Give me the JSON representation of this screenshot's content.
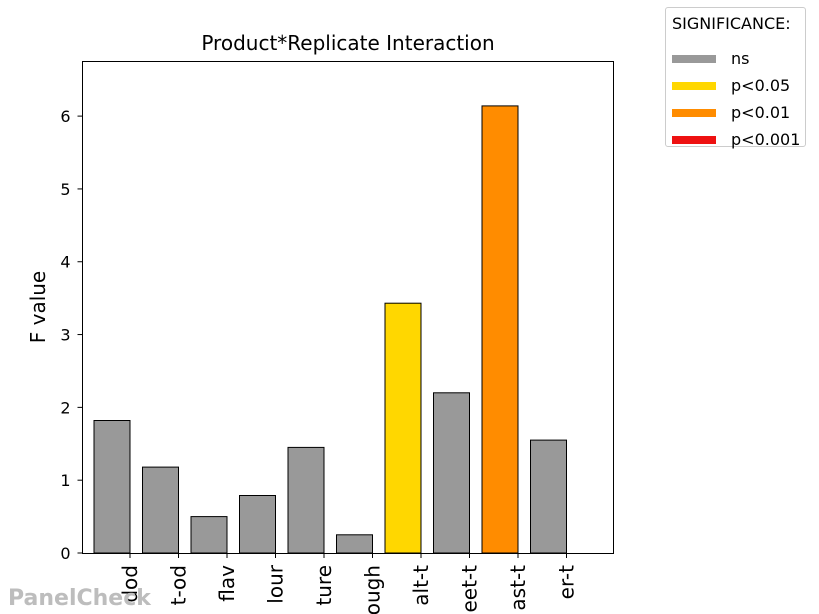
{
  "chart_data": {
    "type": "bar",
    "title": "Product*Replicate Interaction",
    "xlabel": "",
    "ylabel": "F value",
    "ylim": [
      0,
      6.75
    ],
    "yticks": [
      0,
      1,
      2,
      3,
      4,
      5,
      6
    ],
    "grid": false,
    "legend_position": "outside top-right",
    "categories": [
      "dod",
      "t-od",
      "flav",
      "lour",
      "ture",
      "ough",
      "alt-t",
      "eet-t",
      "ast-t",
      "er-t"
    ],
    "values": [
      1.82,
      1.18,
      0.5,
      0.79,
      1.45,
      0.25,
      3.43,
      2.2,
      6.14,
      1.55
    ],
    "significance": [
      "ns",
      "ns",
      "ns",
      "ns",
      "ns",
      "ns",
      "p<0.05",
      "ns",
      "p<0.01",
      "ns"
    ]
  },
  "legend": {
    "title": "SIGNIFICANCE:",
    "items": [
      {
        "label": "ns",
        "color": "#999999"
      },
      {
        "label": "p<0.05",
        "color": "#ffd700"
      },
      {
        "label": "p<0.01",
        "color": "#ff8c00"
      },
      {
        "label": "p<0.001",
        "color": "#ee1111"
      }
    ]
  },
  "watermark": "PanelCheck"
}
